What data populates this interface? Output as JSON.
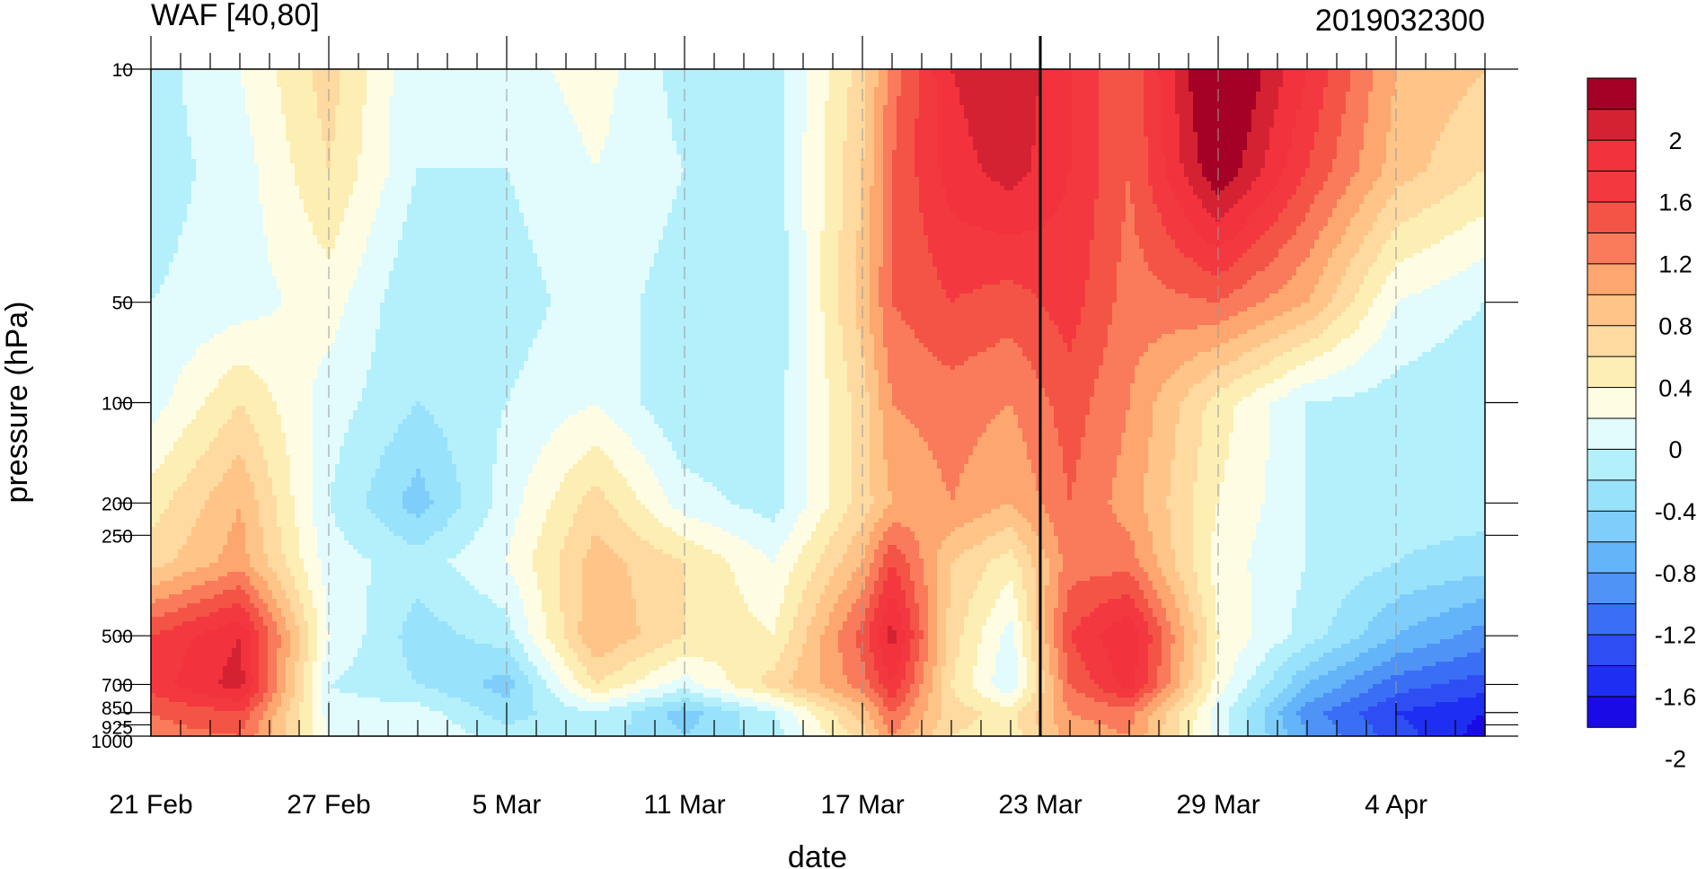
{
  "chart_data": {
    "type": "heatmap",
    "title": "WAF [40,80]",
    "timestamp": "2019032300",
    "xlabel": "date",
    "ylabel": "pressure (hPa)",
    "x_tick_labels": [
      "21 Feb",
      "27 Feb",
      "5 Mar",
      "11 Mar",
      "17 Mar",
      "23 Mar",
      "29 Mar",
      "4 Apr"
    ],
    "x_range": [
      "2019-02-21",
      "2019-04-07"
    ],
    "y_scale": "log",
    "y_reversed": true,
    "y_range": [
      1000,
      10
    ],
    "y_tick_values": [
      10,
      50,
      100,
      200,
      250,
      500,
      700,
      850,
      925,
      1000
    ],
    "y_tick_labels": [
      "10",
      "50",
      "100",
      "200",
      "250",
      "500",
      "700",
      "850",
      "925",
      "1000"
    ],
    "current_date_marker": "2019-03-23",
    "colorbar": {
      "labels": [
        "2",
        "1.6",
        "1.2",
        "0.8",
        "0.4",
        "0",
        "-0.4",
        "-0.8",
        "-1.2",
        "-1.6",
        "-2"
      ],
      "levels": [
        -2.2,
        -2.0,
        -1.8,
        -1.6,
        -1.4,
        -1.2,
        -1.0,
        -0.8,
        -0.6,
        -0.4,
        -0.2,
        0,
        0.2,
        0.4,
        0.6,
        0.8,
        1.0,
        1.2,
        1.4,
        1.6,
        1.8,
        2.0,
        2.2
      ],
      "colors": [
        "#1a0be6",
        "#1e2ff3",
        "#2e4ef4",
        "#3a6ff5",
        "#4f93f7",
        "#64b4fa",
        "#7fcdfb",
        "#99e2fb",
        "#b4f0fb",
        "#e2fbfd",
        "#fefde4",
        "#fdeeb4",
        "#fed9a0",
        "#fec488",
        "#fda66f",
        "#f97b5b",
        "#f45446",
        "#f3393f",
        "#f2323c",
        "#d42233",
        "#a50026"
      ]
    },
    "field": {
      "dates": [
        "2019-02-21",
        "2019-02-24",
        "2019-02-27",
        "2019-03-02",
        "2019-03-05",
        "2019-03-08",
        "2019-03-11",
        "2019-03-14",
        "2019-03-17",
        "2019-03-18",
        "2019-03-20",
        "2019-03-22",
        "2019-03-24",
        "2019-03-26",
        "2019-03-29",
        "2019-04-01",
        "2019-04-04",
        "2019-04-07"
      ],
      "pressure": [
        10,
        20,
        50,
        100,
        200,
        300,
        500,
        700,
        850,
        1000
      ],
      "values": [
        [
          -0.5,
          -0.2,
          0.3,
          -0.4,
          -0.3,
          -0.1,
          -0.5,
          -0.5,
          0.3,
          0.9,
          1.6,
          1.8,
          1.4,
          1.0,
          2.2,
          1.4,
          0.6,
          0.4
        ],
        [
          -0.5,
          -0.3,
          0.2,
          -0.4,
          -0.4,
          -0.2,
          -0.4,
          -0.5,
          0.4,
          1.0,
          1.5,
          1.7,
          1.4,
          1.0,
          2.0,
          1.2,
          0.5,
          0.2
        ],
        [
          -0.4,
          -0.3,
          -0.1,
          -0.6,
          -0.5,
          -0.3,
          -0.5,
          -0.6,
          0.5,
          1.0,
          1.2,
          1.1,
          1.3,
          0.9,
          1.0,
          0.6,
          -0.2,
          -0.4
        ],
        [
          -0.3,
          0.2,
          -0.3,
          -0.6,
          -0.4,
          -0.2,
          -0.6,
          -0.5,
          0.3,
          0.8,
          0.9,
          0.8,
          1.1,
          0.8,
          0.1,
          -0.4,
          -0.5,
          -0.6
        ],
        [
          0.1,
          0.6,
          -0.4,
          -0.9,
          -0.3,
          0.3,
          -0.3,
          -0.5,
          0.3,
          0.6,
          0.8,
          0.6,
          1.0,
          0.7,
          0.0,
          -0.4,
          -0.5,
          -0.5
        ],
        [
          0.3,
          0.7,
          -0.3,
          -0.5,
          -0.2,
          0.5,
          0.2,
          -0.2,
          0.6,
          1.2,
          0.4,
          0.1,
          0.9,
          0.9,
          -0.1,
          -0.4,
          -0.6,
          -0.7
        ],
        [
          1.2,
          1.6,
          -0.2,
          -0.7,
          -0.5,
          0.6,
          0.2,
          0.0,
          1.1,
          1.7,
          0.3,
          -0.3,
          1.2,
          1.6,
          0.0,
          -0.5,
          -1.0,
          -1.3
        ],
        [
          1.3,
          1.7,
          -0.4,
          -0.6,
          -0.9,
          0.2,
          -0.3,
          0.3,
          0.9,
          1.4,
          0.2,
          -0.4,
          1.0,
          1.5,
          -0.1,
          -1.0,
          -1.5,
          -1.7
        ],
        [
          1.0,
          1.2,
          -0.3,
          -0.3,
          -0.7,
          -0.4,
          -0.9,
          -0.4,
          0.5,
          1.0,
          0.3,
          0.1,
          0.8,
          0.9,
          -0.3,
          -1.3,
          -1.8,
          -2.0
        ],
        [
          0.9,
          1.0,
          -0.2,
          -0.2,
          -0.5,
          -0.5,
          -0.8,
          -0.5,
          0.3,
          0.8,
          0.2,
          0.1,
          0.7,
          0.8,
          -0.3,
          -1.2,
          -1.7,
          -2.1
        ]
      ]
    }
  }
}
